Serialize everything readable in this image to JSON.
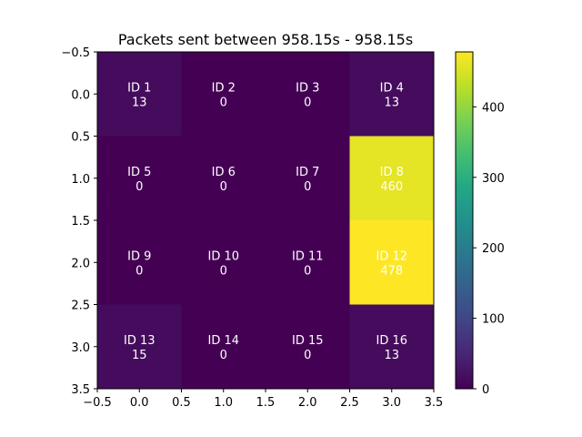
{
  "chart_data": {
    "type": "heatmap",
    "title": "Packets sent between 958.15s - 958.15s",
    "xlabel": "",
    "ylabel": "",
    "xlim": [
      -0.5,
      3.5
    ],
    "ylim": [
      3.5,
      -0.5
    ],
    "x_ticks": [
      "−0.5",
      "0.0",
      "0.5",
      "1.0",
      "1.5",
      "2.0",
      "2.5",
      "3.0",
      "3.5"
    ],
    "y_ticks": [
      "−0.5",
      "0.0",
      "0.5",
      "1.0",
      "1.5",
      "2.0",
      "2.5",
      "3.0",
      "3.5"
    ],
    "x_tick_values": [
      -0.5,
      0,
      0.5,
      1,
      1.5,
      2,
      2.5,
      3,
      3.5
    ],
    "y_tick_values": [
      -0.5,
      0,
      0.5,
      1,
      1.5,
      2,
      2.5,
      3,
      3.5
    ],
    "cells": [
      [
        {
          "id": "ID 1",
          "value": 13
        },
        {
          "id": "ID 2",
          "value": 0
        },
        {
          "id": "ID 3",
          "value": 0
        },
        {
          "id": "ID 4",
          "value": 13
        }
      ],
      [
        {
          "id": "ID 5",
          "value": 0
        },
        {
          "id": "ID 6",
          "value": 0
        },
        {
          "id": "ID 7",
          "value": 0
        },
        {
          "id": "ID 8",
          "value": 460
        }
      ],
      [
        {
          "id": "ID 9",
          "value": 0
        },
        {
          "id": "ID 10",
          "value": 0
        },
        {
          "id": "ID 11",
          "value": 0
        },
        {
          "id": "ID 12",
          "value": 478
        }
      ],
      [
        {
          "id": "ID 13",
          "value": 15
        },
        {
          "id": "ID 14",
          "value": 0
        },
        {
          "id": "ID 15",
          "value": 0
        },
        {
          "id": "ID 16",
          "value": 13
        }
      ]
    ],
    "colorbar": {
      "colormap": "viridis",
      "vmin": 0,
      "vmax": 478,
      "ticks": [
        0,
        100,
        200,
        300,
        400
      ],
      "tick_labels": [
        "0",
        "100",
        "200",
        "300",
        "400"
      ]
    },
    "grid": false
  }
}
